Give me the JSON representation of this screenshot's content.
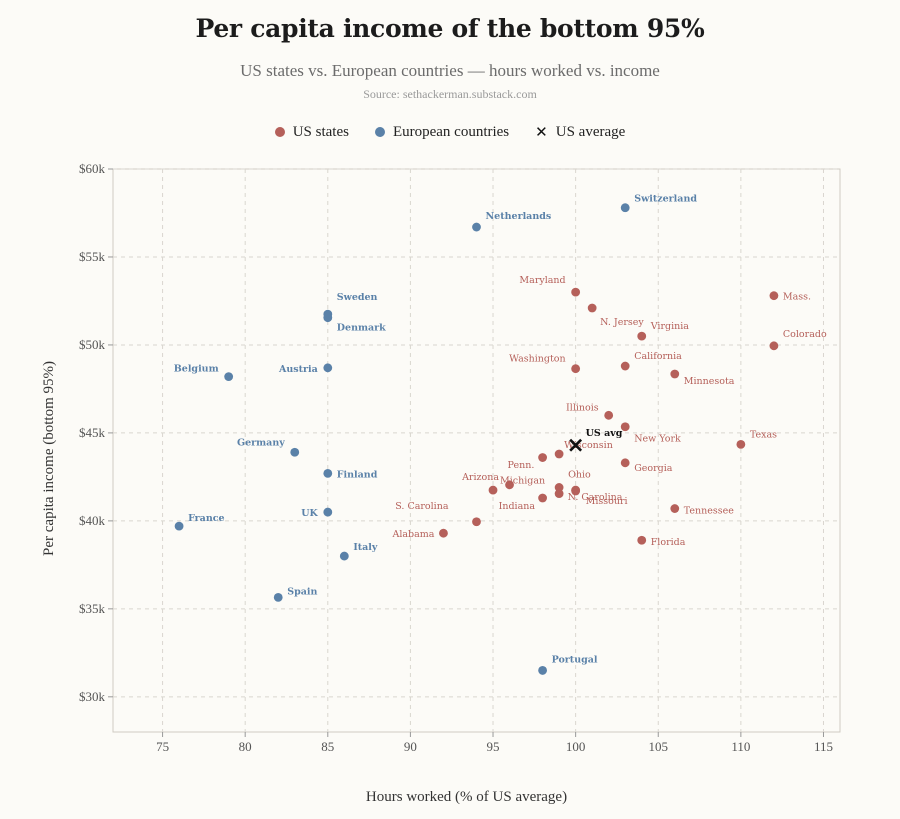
{
  "header": {
    "title": "Per capita income of the bottom 95%",
    "subtitle": "US states vs. European countries — hours worked vs. income",
    "source": "Source: sethackerman.substack.com"
  },
  "legend": {
    "us_states": "US states",
    "europe": "European countries",
    "us_average": "US average"
  },
  "colors": {
    "us_states": "#b5605a",
    "europe": "#5a81a8",
    "us_average": "#111111",
    "grid": "#d9d6cf"
  },
  "chart_data": {
    "type": "scatter",
    "title": "Per capita income of the bottom 95%",
    "subtitle": "US states vs. European countries — hours worked vs. income",
    "xlabel": "Hours worked (% of US average)",
    "ylabel": "Per capita income (bottom 95%)",
    "xlim": [
      72,
      116
    ],
    "ylim": [
      28000,
      60000
    ],
    "xticks": [
      75,
      80,
      85,
      90,
      95,
      100,
      105,
      110,
      115
    ],
    "yticks": [
      30000,
      35000,
      40000,
      45000,
      50000,
      55000,
      60000
    ],
    "ytick_labels": [
      "$30k",
      "$35k",
      "$40k",
      "$45k",
      "$50k",
      "$55k",
      "$60k"
    ],
    "grid": true,
    "legend_position": "top-center",
    "series": [
      {
        "name": "US states",
        "points": [
          {
            "label": "Maryland",
            "x": 100,
            "y": 53000
          },
          {
            "label": "N. Jersey",
            "x": 101,
            "y": 52100
          },
          {
            "label": "Mass.",
            "x": 112,
            "y": 52800
          },
          {
            "label": "Virginia",
            "x": 104,
            "y": 50500
          },
          {
            "label": "Colorado",
            "x": 112,
            "y": 49950
          },
          {
            "label": "Washington",
            "x": 100,
            "y": 48650
          },
          {
            "label": "California",
            "x": 103,
            "y": 48800
          },
          {
            "label": "Minnesota",
            "x": 106,
            "y": 48350
          },
          {
            "label": "Illinois",
            "x": 102,
            "y": 46000
          },
          {
            "label": "New York",
            "x": 103,
            "y": 45350
          },
          {
            "label": "Texas",
            "x": 110,
            "y": 44350
          },
          {
            "label": "Wisconsin",
            "x": 99,
            "y": 43800
          },
          {
            "label": "",
            "x": 98,
            "y": 43600
          },
          {
            "label": "Georgia",
            "x": 103,
            "y": 43300
          },
          {
            "label": "Penn.",
            "x": 96,
            "y": 42050
          },
          {
            "label": "Arizona",
            "x": 95,
            "y": 41750
          },
          {
            "label": "Ohio",
            "x": 99,
            "y": 41900
          },
          {
            "label": "Michigan",
            "x": 99,
            "y": 41550
          },
          {
            "label": "N. Carolina",
            "x": 100,
            "y": 41700
          },
          {
            "label": "Indiana",
            "x": 98,
            "y": 41300
          },
          {
            "label": "Missouri",
            "x": 100,
            "y": 41750
          },
          {
            "label": "Tennessee",
            "x": 106,
            "y": 40700
          },
          {
            "label": "S. Carolina",
            "x": 94,
            "y": 39950
          },
          {
            "label": "Alabama",
            "x": 92,
            "y": 39300
          },
          {
            "label": "Florida",
            "x": 104,
            "y": 38900
          }
        ]
      },
      {
        "name": "European countries",
        "points": [
          {
            "label": "Switzerland",
            "x": 103,
            "y": 57800
          },
          {
            "label": "Netherlands",
            "x": 94,
            "y": 56700
          },
          {
            "label": "Sweden",
            "x": 85,
            "y": 51750
          },
          {
            "label": "Denmark",
            "x": 85,
            "y": 51550
          },
          {
            "label": "Belgium",
            "x": 79,
            "y": 48200
          },
          {
            "label": "Austria",
            "x": 85,
            "y": 48700
          },
          {
            "label": "Germany",
            "x": 83,
            "y": 43900
          },
          {
            "label": "Finland",
            "x": 85,
            "y": 42700
          },
          {
            "label": "UK",
            "x": 85,
            "y": 40500
          },
          {
            "label": "France",
            "x": 76,
            "y": 39700
          },
          {
            "label": "Italy",
            "x": 86,
            "y": 38000
          },
          {
            "label": "Spain",
            "x": 82,
            "y": 35650
          },
          {
            "label": "Portugal",
            "x": 98,
            "y": 31500
          }
        ]
      }
    ],
    "us_average": {
      "label": "US avg",
      "x": 100,
      "y": 44300
    }
  }
}
